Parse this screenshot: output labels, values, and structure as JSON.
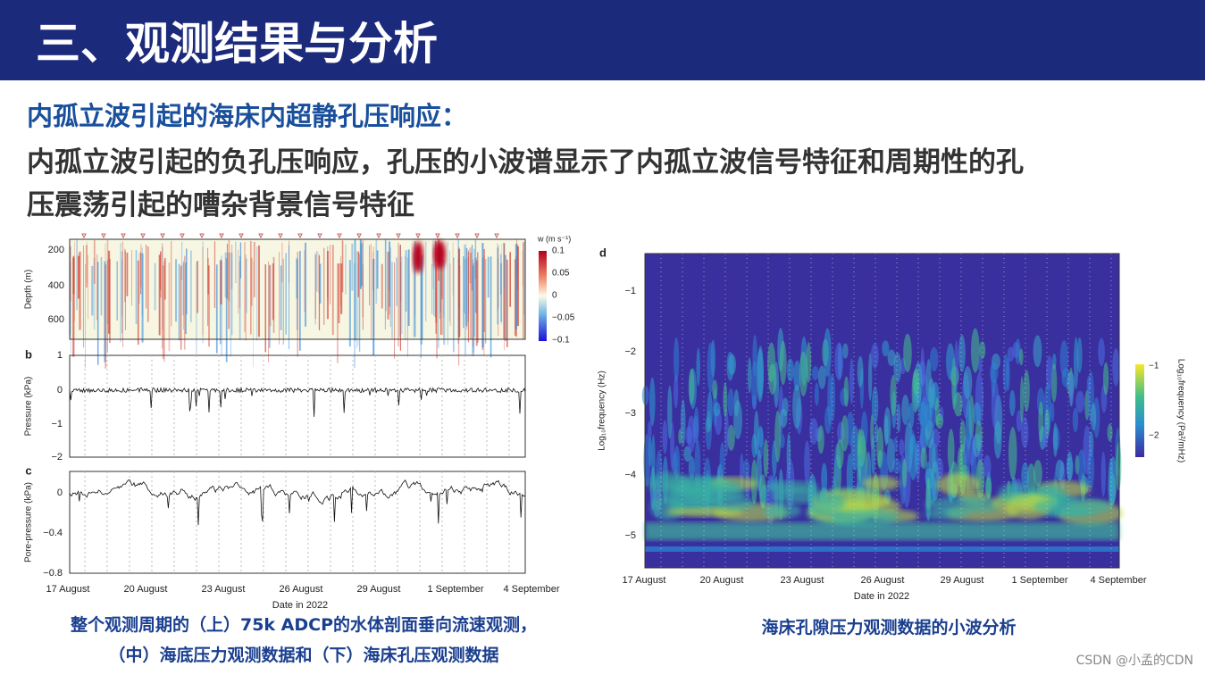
{
  "header": {
    "title": "三、观测结果与分析"
  },
  "subtitle": "内孤立波引起的海床内超静孔压响应：",
  "body": [
    "内孤立波引起的负孔压响应，孔压的小波谱显示了内孤立波信号特征和周期性的孔",
    "压震荡引起的嘈杂背景信号特征"
  ],
  "left_figure": {
    "panel_a": {
      "y_label": "Depth (m)",
      "y_ticks": [
        "200",
        "400",
        "600"
      ],
      "colorbar_title": "w (m s⁻¹)",
      "colorbar_ticks": [
        "0.1",
        "0.05",
        "0",
        "−0.05",
        "−0.1"
      ]
    },
    "panel_b": {
      "letter": "b",
      "y_label": "Pressure (kPa)",
      "y_ticks": [
        "1",
        "0",
        "−1",
        "−2"
      ]
    },
    "panel_c": {
      "letter": "c",
      "y_label": "Pore-pressure (kPa)",
      "y_ticks": [
        "0",
        "−0.4",
        "−0.8"
      ]
    },
    "x_ticks": [
      "17 August",
      "20 August",
      "23 August",
      "26 August",
      "29 August",
      "1 September",
      "4 September"
    ],
    "x_label": "Date in 2022",
    "caption": [
      "整个观测周期的（上）75k ADCP的水体剖面垂向流速观测，",
      "（中）海底压力观测数据和（下）海床孔压观测数据"
    ]
  },
  "right_figure": {
    "letter": "d",
    "y_label": "Log₁₀frequency (Hz)",
    "y_ticks": [
      "−1",
      "−2",
      "−3",
      "−4",
      "−5"
    ],
    "x_ticks": [
      "17 August",
      "20 August",
      "23 August",
      "26 August",
      "29 August",
      "1 September",
      "4 September"
    ],
    "x_label": "Date in 2022",
    "colorbar_title": "Log₁₀frequency (Pa²/mHz)",
    "colorbar_ticks": [
      "−1",
      "−2"
    ],
    "caption": "海床孔隙压力观测数据的小波分析"
  },
  "watermark": "CSDN @小孟的CDN"
}
